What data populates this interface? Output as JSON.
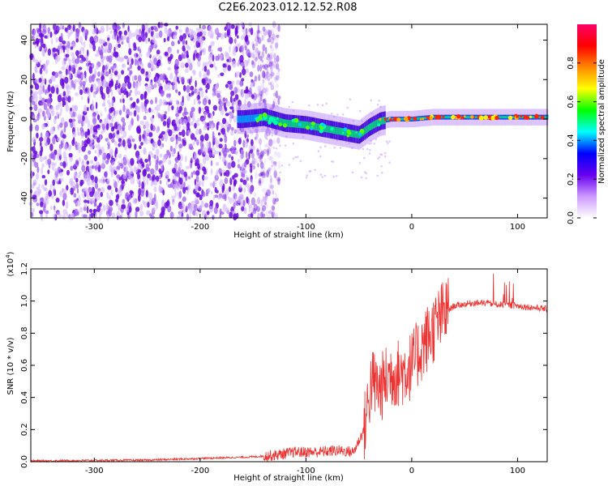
{
  "chart_data": [
    {
      "type": "heatmap",
      "title": "C2E6.2023.012.12.52.R08",
      "xlabel": "Height of straight line (km)",
      "ylabel": "Frequency (Hz)",
      "xlim": [
        -360,
        128
      ],
      "ylim": [
        -50,
        48
      ],
      "xticks": [
        -300,
        -200,
        -100,
        0,
        100
      ],
      "yticks": [
        -40,
        -20,
        0,
        20,
        40
      ],
      "colorbar": {
        "label": "Normalized spectral amplitude",
        "range": [
          0.0,
          1.0
        ],
        "ticks": [
          0.0,
          0.2,
          0.4,
          0.6,
          0.8
        ],
        "colors": [
          "#ffffff",
          "#cc99ff",
          "#6600ee",
          "#0000ff",
          "#00ffff",
          "#00ff00",
          "#ffff00",
          "#ff8800",
          "#ff0000",
          "#ff0066"
        ]
      },
      "ridge": {
        "x": [
          -160,
          -140,
          -120,
          -100,
          -80,
          -60,
          -50,
          -40,
          -30,
          -20,
          -10,
          0,
          20,
          50,
          80,
          128
        ],
        "y": [
          0,
          1,
          -2,
          -3,
          -5,
          -7,
          -8,
          -4,
          -1,
          0,
          0,
          0,
          1,
          1,
          1,
          1
        ]
      },
      "noise_region_x": [
        -360,
        -135
      ]
    },
    {
      "type": "line",
      "title": "",
      "xlabel": "Height of straight line (km)",
      "ylabel": "SNR (10 * v/v)",
      "y_multiplier": "(x10",
      "y_multiplier_exp": "4",
      "y_multiplier_close": ")",
      "xlim": [
        -360,
        128
      ],
      "ylim": [
        0.0,
        1.2
      ],
      "xticks": [
        -300,
        -200,
        -100,
        0,
        100
      ],
      "yticks": [
        0.0,
        0.2,
        0.4,
        0.6,
        0.8,
        1.0,
        1.2
      ],
      "series_color": "#ee3333",
      "profile": {
        "x": [
          -360,
          -250,
          -150,
          -130,
          -110,
          -90,
          -70,
          -55,
          -45,
          -38,
          -30,
          -20,
          -10,
          0,
          10,
          20,
          30,
          40,
          60,
          80,
          100,
          128
        ],
        "y": [
          0.005,
          0.01,
          0.03,
          0.04,
          0.06,
          0.06,
          0.07,
          0.06,
          0.2,
          0.5,
          0.45,
          0.55,
          0.55,
          0.6,
          0.72,
          0.82,
          0.92,
          0.97,
          0.99,
          0.98,
          0.97,
          0.95
        ]
      }
    }
  ]
}
